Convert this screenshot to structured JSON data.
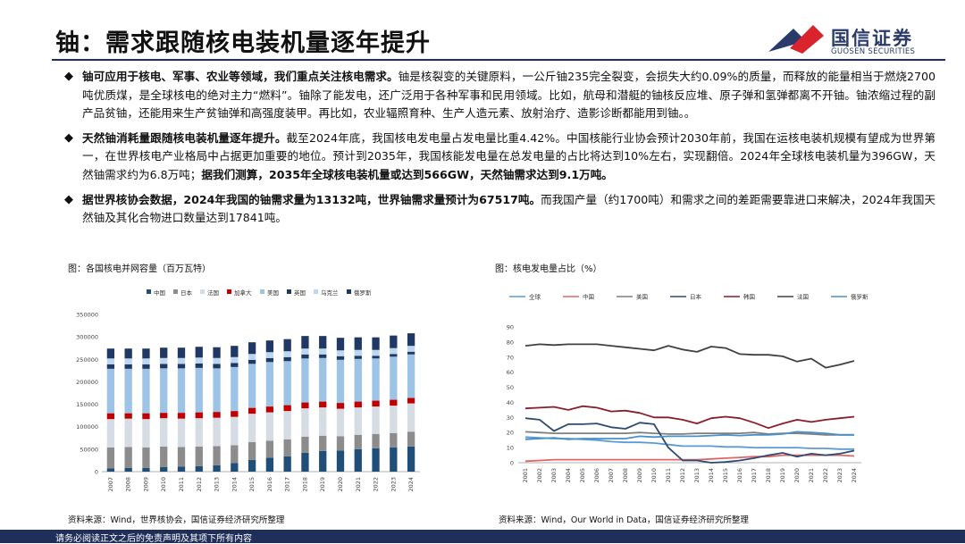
{
  "slide": {
    "title": "铀：需求跟随核电装机量逐年提升",
    "footer": "请务必阅读正文之后的免责声明及其项下所有内容",
    "logo": {
      "cn": "国信证券",
      "en": "GUOSEN SECURITIES",
      "colors": [
        "#2a3b6b",
        "#d9232d"
      ]
    }
  },
  "bullets": [
    {
      "marker": "◆",
      "parts": [
        {
          "text": "铀可应用于核电、军事、农业等领域，我们重点关注核电需求。",
          "bold": true
        },
        {
          "text": "铀是核裂变的关键原料，一公斤铀235完全裂变，会损失大约0.09%的质量，而释放的能量相当于燃烧2700吨优质煤，是全球核电的绝对主力“燃料”。铀除了能发电，还广泛用于各种军事和民用领域。比如，航母和潜艇的铀核反应堆、原子弹和氢弹都离不开铀。铀浓缩过程的副产品贫铀，还能用来生产贫铀弹和高强度装甲。再比如，农业辐照育种、生产人造元素、放射治疗、造影诊断都能用到铀。。",
          "bold": false
        }
      ]
    },
    {
      "marker": "◆",
      "parts": [
        {
          "text": "天然铀消耗量跟随核电装机量逐年提升。",
          "bold": true
        },
        {
          "text": "截至2024年底，我国核电发电量占发电量比重4.42%。中国核能行业协会预计2030年前，我国在运核电装机规模有望成为世界第一，在世界核电产业格局中占据更加重要的地位。预计到2035年，我国核能发电量在总发电量的占比将达到10%左右，实现翻倍。2024年全球核电装机量为396GW，天然铀需求约为6.8万吨；",
          "bold": false
        },
        {
          "text": "据我们测算，2035年全球核电装机量或达到566GW，天然铀需求达到9.1万吨。",
          "bold": true
        }
      ]
    },
    {
      "marker": "◆",
      "parts": [
        {
          "text": "据世界核协会数据，2024年我国的铀需求量为13132吨，世界铀需求量预计为67517吨。",
          "bold": true
        },
        {
          "text": "而我国产量（约1700吨）和需求之间的差距需要靠进口来解决，2024年我国天然铀及其化合物进口数量达到17841吨。",
          "bold": false
        }
      ]
    }
  ],
  "figures": {
    "left": {
      "title": "图：各国核电并网容量（百万瓦特）",
      "source": "资料来源：Wind，世界核协会，国信证券经济研究所整理"
    },
    "right": {
      "title": "图：核电发电量占比（%）",
      "source": "资料来源：Wind，Our World in Data，国信证券经济研究所整理"
    }
  },
  "chart_data": [
    {
      "type": "bar",
      "stacked": true,
      "title": "各国核电并网容量（百万瓦特）",
      "categories": [
        "2007",
        "2008",
        "2009",
        "2010",
        "2011",
        "2012",
        "2013",
        "2014",
        "2015",
        "2016",
        "2017",
        "2018",
        "2019",
        "2020",
        "2021",
        "2022",
        "2023",
        "2024"
      ],
      "ylim": [
        0,
        350000
      ],
      "yticks": [
        0,
        50000,
        100000,
        150000,
        200000,
        250000,
        300000,
        350000
      ],
      "grid": false,
      "legend": "top",
      "series": [
        {
          "name": "中国",
          "color": "#1f4e79",
          "values": [
            7000,
            8000,
            8000,
            10000,
            11000,
            12000,
            14000,
            19000,
            26000,
            31000,
            34000,
            42000,
            46000,
            47000,
            50000,
            52000,
            54000,
            56000
          ]
        },
        {
          "name": "日本",
          "color": "#8c8c8c",
          "values": [
            47000,
            47000,
            46000,
            46000,
            44000,
            44000,
            43000,
            40000,
            40000,
            38000,
            38000,
            36000,
            34000,
            32000,
            32000,
            32000,
            32000,
            33000
          ]
        },
        {
          "name": "法国",
          "color": "#d6dce4",
          "values": [
            63000,
            63000,
            63000,
            63000,
            63000,
            63000,
            63000,
            63000,
            63000,
            63000,
            63000,
            63000,
            63000,
            61000,
            61000,
            61000,
            61000,
            63000
          ]
        },
        {
          "name": "加拿大",
          "color": "#c00000",
          "values": [
            13000,
            12000,
            13000,
            12000,
            13000,
            13000,
            13000,
            13000,
            13000,
            13000,
            13000,
            13000,
            13000,
            13000,
            13000,
            13000,
            13000,
            12000
          ]
        },
        {
          "name": "美国",
          "color": "#9dc3e6",
          "values": [
            99000,
            99000,
            99000,
            99000,
            99000,
            99000,
            97000,
            98000,
            98000,
            99000,
            98000,
            98000,
            97000,
            96000,
            95000,
            94000,
            96000,
            97000
          ]
        },
        {
          "name": "英国",
          "color": "#1f3864",
          "values": [
            10000,
            10000,
            10000,
            10000,
            10000,
            10000,
            10000,
            9000,
            9000,
            9000,
            9000,
            9000,
            8000,
            8000,
            7000,
            6000,
            6000,
            6000
          ]
        },
        {
          "name": "乌克兰",
          "color": "#bdd7ee",
          "values": [
            13000,
            13000,
            13000,
            13000,
            13000,
            13000,
            13000,
            13000,
            13000,
            13000,
            13000,
            13000,
            13000,
            13000,
            13000,
            13000,
            13000,
            13000
          ]
        },
        {
          "name": "俄罗斯",
          "color": "#203864",
          "values": [
            22000,
            22000,
            22000,
            23000,
            23000,
            24000,
            24000,
            25000,
            26000,
            26000,
            27000,
            28000,
            28000,
            28000,
            28000,
            28000,
            28000,
            28000
          ]
        }
      ]
    },
    {
      "type": "line",
      "title": "核电发电量占比（%）",
      "x": [
        "2001",
        "2002",
        "2003",
        "2004",
        "2005",
        "2006",
        "2007",
        "2008",
        "2009",
        "2010",
        "2011",
        "2012",
        "2013",
        "2014",
        "2015",
        "2016",
        "2017",
        "2018",
        "2019",
        "2020",
        "2021",
        "2022",
        "2023",
        "2024"
      ],
      "ylim": [
        0,
        90
      ],
      "yticks": [
        0,
        10,
        20,
        30,
        40,
        50,
        60,
        70,
        80,
        90
      ],
      "grid": false,
      "legend": "top",
      "series": [
        {
          "name": "全球",
          "color": "#5b9bd5",
          "values": [
            17,
            16.5,
            16,
            16,
            15.5,
            15,
            14,
            13.5,
            13.5,
            13,
            12,
            11,
            11,
            11,
            10.5,
            10.5,
            10,
            10,
            10,
            10,
            9.5,
            9.5,
            9,
            9
          ]
        },
        {
          "name": "中国",
          "color": "#e06666",
          "values": [
            1,
            1.5,
            2,
            2,
            2,
            2,
            2,
            2,
            2,
            2,
            2,
            2,
            2,
            2.5,
            3,
            3.5,
            4,
            4,
            5,
            5,
            5,
            5,
            5,
            4.42
          ]
        },
        {
          "name": "美国",
          "color": "#7f7f7f",
          "values": [
            20.5,
            20,
            19.5,
            19.5,
            19.5,
            19.5,
            19.5,
            19.5,
            20,
            19.5,
            19,
            19,
            19.5,
            19.5,
            19.5,
            19.5,
            20,
            19,
            19.5,
            19.5,
            19,
            18.5,
            18.5,
            18.5
          ]
        },
        {
          "name": "日本",
          "color": "#2e4a6f",
          "values": [
            29.5,
            28.5,
            21,
            25.5,
            25.5,
            26,
            23.5,
            22.5,
            26.5,
            25.5,
            10,
            1.5,
            1.5,
            0,
            0.5,
            1.5,
            3,
            5,
            6.5,
            4,
            6,
            5,
            6,
            8
          ]
        },
        {
          "name": "韩国",
          "color": "#8b1c2c",
          "values": [
            36,
            36.5,
            37,
            35,
            37.5,
            36.5,
            34,
            34.5,
            33,
            30,
            30,
            28.5,
            26,
            29.5,
            30.5,
            29.5,
            26.5,
            23,
            26,
            28.5,
            27,
            28.5,
            29.5,
            30.5
          ]
        },
        {
          "name": "法国",
          "color": "#404040",
          "values": [
            77.5,
            78.5,
            78,
            78.5,
            78.5,
            78.5,
            77.5,
            76.5,
            75.5,
            74.5,
            77.5,
            75,
            73.5,
            77,
            76,
            72,
            71.5,
            71.5,
            70.5,
            67,
            69,
            63,
            65,
            67.5
          ]
        },
        {
          "name": "俄罗斯",
          "color": "#4a90c8",
          "values": [
            15.5,
            16,
            16.5,
            15.5,
            16,
            16,
            16,
            16,
            17.5,
            17,
            17.5,
            17.5,
            17.5,
            18,
            18.5,
            18,
            18.5,
            18.5,
            19,
            20.5,
            20,
            19.5,
            18.5,
            18.5
          ]
        }
      ]
    }
  ]
}
